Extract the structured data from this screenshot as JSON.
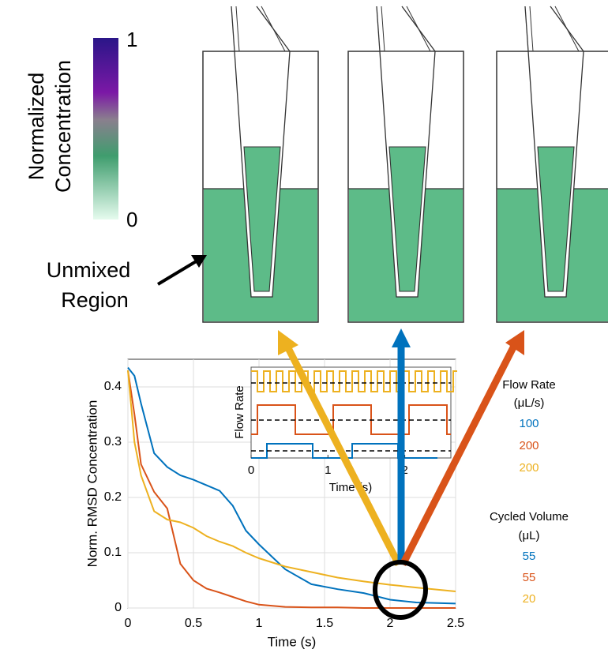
{
  "colorbar": {
    "label_lines": [
      "Normalized",
      "Concentration"
    ],
    "ticks": [
      1,
      0
    ]
  },
  "annotation": {
    "lines": [
      "Unmixed",
      "Region"
    ]
  },
  "chart_data": {
    "type": "line",
    "xlabel": "Time (s)",
    "ylabel": "Norm. RMSD Concentration",
    "x": [
      0,
      0.05,
      0.1,
      0.2,
      0.3,
      0.4,
      0.5,
      0.6,
      0.7,
      0.8,
      0.9,
      1.0,
      1.2,
      1.4,
      1.6,
      1.8,
      2.0,
      2.2,
      2.5
    ],
    "series": [
      {
        "color": "#0072BD",
        "values": [
          0.435,
          0.42,
          0.37,
          0.28,
          0.255,
          0.24,
          0.232,
          0.222,
          0.212,
          0.185,
          0.14,
          0.115,
          0.07,
          0.043,
          0.034,
          0.027,
          0.015,
          0.01,
          0.008
        ]
      },
      {
        "color": "#D95319",
        "values": [
          0.43,
          0.35,
          0.26,
          0.21,
          0.18,
          0.08,
          0.05,
          0.035,
          0.028,
          0.02,
          0.012,
          0.006,
          0.002,
          0.001,
          0.001,
          0,
          0,
          0,
          0
        ]
      },
      {
        "color": "#EDB120",
        "values": [
          0.43,
          0.3,
          0.24,
          0.175,
          0.16,
          0.155,
          0.145,
          0.13,
          0.12,
          0.112,
          0.1,
          0.09,
          0.075,
          0.065,
          0.055,
          0.048,
          0.042,
          0.037,
          0.03
        ]
      }
    ],
    "xlim": [
      0,
      2.5
    ],
    "ylim": [
      0,
      0.45
    ],
    "xticks": [
      0,
      0.5,
      1,
      1.5,
      2,
      2.5
    ],
    "yticks": [
      0,
      0.1,
      0.2,
      0.3,
      0.4
    ],
    "grid": true
  },
  "inset": {
    "xlabel": "Time (s)",
    "ylabel": "Flow Rate",
    "xlim": [
      0,
      2.6
    ],
    "xticks": [
      0,
      1,
      2
    ]
  },
  "legend": {
    "flow_rate_title": "Flow Rate",
    "flow_rate_unit": "(μL/s)",
    "flow_rates": [
      100,
      200,
      200
    ],
    "volume_title": "Cycled Volume",
    "volume_unit": "(μL)",
    "volumes": [
      55,
      55,
      20
    ]
  }
}
